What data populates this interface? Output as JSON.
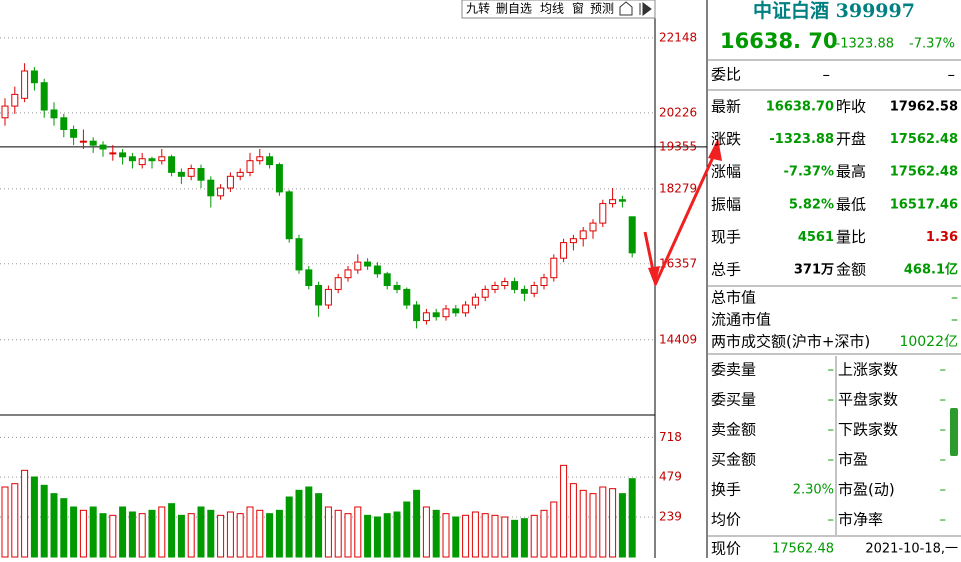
{
  "toolbar": [
    "九转",
    "删自选",
    "均线",
    "窗",
    "预测"
  ],
  "chart_data": {
    "type": "candlestick",
    "candles": [
      [
        20100,
        20600,
        19900,
        20400
      ],
      [
        20400,
        20900,
        20200,
        20700
      ],
      [
        20600,
        21500,
        20500,
        21300
      ],
      [
        21300,
        21400,
        20800,
        21000
      ],
      [
        21000,
        21100,
        20100,
        20300
      ],
      [
        20300,
        20500,
        19900,
        20100
      ],
      [
        20100,
        20200,
        19600,
        19800
      ],
      [
        19800,
        19900,
        19400,
        19600
      ],
      [
        19500,
        19800,
        19300,
        19500
      ],
      [
        19500,
        19600,
        19200,
        19400
      ],
      [
        19400,
        19500,
        19100,
        19300
      ],
      [
        19200,
        19400,
        19000,
        19200
      ],
      [
        19200,
        19300,
        18900,
        19100
      ],
      [
        19100,
        19200,
        18800,
        19000
      ],
      [
        18900,
        19200,
        18800,
        19050
      ],
      [
        19050,
        19100,
        18800,
        19000
      ],
      [
        19000,
        19300,
        18900,
        19100
      ],
      [
        19100,
        19150,
        18600,
        18700
      ],
      [
        18700,
        18800,
        18400,
        18600
      ],
      [
        18600,
        18900,
        18500,
        18800
      ],
      [
        18800,
        18900,
        18300,
        18500
      ],
      [
        18500,
        18600,
        17800,
        18100
      ],
      [
        18100,
        18400,
        18000,
        18300
      ],
      [
        18300,
        18700,
        18200,
        18600
      ],
      [
        18600,
        18800,
        18500,
        18700
      ],
      [
        18700,
        19200,
        18600,
        19000
      ],
      [
        19000,
        19300,
        18900,
        19100
      ],
      [
        19100,
        19200,
        18800,
        18900
      ],
      [
        18900,
        18950,
        18100,
        18200
      ],
      [
        18200,
        18250,
        16900,
        17000
      ],
      [
        17000,
        17100,
        16100,
        16200
      ],
      [
        16200,
        16300,
        15700,
        15800
      ],
      [
        15800,
        15900,
        15000,
        15300
      ],
      [
        15300,
        15800,
        15200,
        15700
      ],
      [
        15700,
        16100,
        15600,
        16000
      ],
      [
        16000,
        16300,
        15900,
        16200
      ],
      [
        16200,
        16600,
        16100,
        16400
      ],
      [
        16400,
        16500,
        16200,
        16300
      ],
      [
        16300,
        16400,
        16000,
        16100
      ],
      [
        16100,
        16150,
        15700,
        15800
      ],
      [
        15800,
        15900,
        15600,
        15700
      ],
      [
        15700,
        15750,
        15200,
        15300
      ],
      [
        15300,
        15400,
        14700,
        14900
      ],
      [
        14900,
        15200,
        14800,
        15100
      ],
      [
        15100,
        15200,
        14900,
        15000
      ],
      [
        15000,
        15300,
        14900,
        15200
      ],
      [
        15200,
        15300,
        15000,
        15100
      ],
      [
        15100,
        15400,
        15000,
        15300
      ],
      [
        15300,
        15600,
        15200,
        15500
      ],
      [
        15500,
        15800,
        15400,
        15700
      ],
      [
        15700,
        15900,
        15600,
        15800
      ],
      [
        15800,
        16000,
        15700,
        15900
      ],
      [
        15900,
        16000,
        15600,
        15700
      ],
      [
        15700,
        15800,
        15400,
        15600
      ],
      [
        15600,
        15900,
        15500,
        15800
      ],
      [
        15800,
        16100,
        15700,
        16000
      ],
      [
        16000,
        16600,
        15900,
        16500
      ],
      [
        16500,
        17000,
        16400,
        16900
      ],
      [
        16900,
        17100,
        16700,
        17000
      ],
      [
        17000,
        17300,
        16800,
        17200
      ],
      [
        17200,
        17500,
        17000,
        17400
      ],
      [
        17400,
        18000,
        17300,
        17900
      ],
      [
        17900,
        18300,
        17800,
        18000
      ],
      [
        18000,
        18100,
        17800,
        17962
      ],
      [
        17562,
        17562,
        16517,
        16638
      ]
    ],
    "volumes": [
      420,
      440,
      520,
      480,
      430,
      380,
      350,
      300,
      280,
      300,
      260,
      250,
      300,
      270,
      260,
      280,
      300,
      320,
      250,
      260,
      300,
      280,
      250,
      270,
      260,
      300,
      280,
      260,
      280,
      360,
      400,
      420,
      380,
      300,
      280,
      260,
      300,
      250,
      240,
      260,
      270,
      330,
      400,
      300,
      280,
      260,
      240,
      250,
      270,
      260,
      250,
      240,
      220,
      230,
      250,
      280,
      330,
      550,
      440,
      400,
      380,
      420,
      410,
      380,
      470
    ],
    "ylim": [
      12480,
      23120
    ],
    "yticks": [
      14409,
      16357,
      18279,
      20226,
      22148
    ],
    "ref_line": 19355,
    "vol_ylim": [
      0,
      840
    ],
    "vol_yticks": [
      239,
      479,
      718
    ],
    "up_color": "#e00000",
    "down_color": "#009900"
  },
  "quote": {
    "name": "中证白酒 399997",
    "price": "16638. 70",
    "change": "-1323.88",
    "pct": "-7.37%"
  },
  "weibi": [
    "委比",
    "–",
    "–"
  ],
  "stats": [
    [
      "最新",
      "16638.70",
      "昨收",
      "17962.58"
    ],
    [
      "涨跌",
      "-1323.88",
      "开盘",
      "17562.48"
    ],
    [
      "涨幅",
      "-7.37%",
      "最高",
      "17562.48"
    ],
    [
      "振幅",
      "5.82%",
      "最低",
      "16517.46"
    ],
    [
      "现手",
      "4561",
      "量比",
      "1.36"
    ],
    [
      "总手",
      "371万",
      "金额",
      "468.1亿"
    ]
  ],
  "market": [
    [
      "总市值",
      "–"
    ],
    [
      "流通市值",
      "–"
    ],
    [
      "两市成交额(沪市+深市)",
      "10022亿"
    ]
  ],
  "breadth": [
    [
      "委卖量",
      "–",
      "上涨家数",
      "–"
    ],
    [
      "委买量",
      "–",
      "平盘家数",
      "–"
    ],
    [
      "卖金额",
      "–",
      "下跌家数",
      "–"
    ],
    [
      "买金额",
      "–",
      "市盈",
      "–"
    ],
    [
      "换手",
      "2.30%",
      "市盈(动)",
      "–"
    ],
    [
      "均价",
      "–",
      "市净率",
      "–"
    ]
  ],
  "footer": [
    "现价",
    "17562.48",
    "2021-10-18,一"
  ]
}
